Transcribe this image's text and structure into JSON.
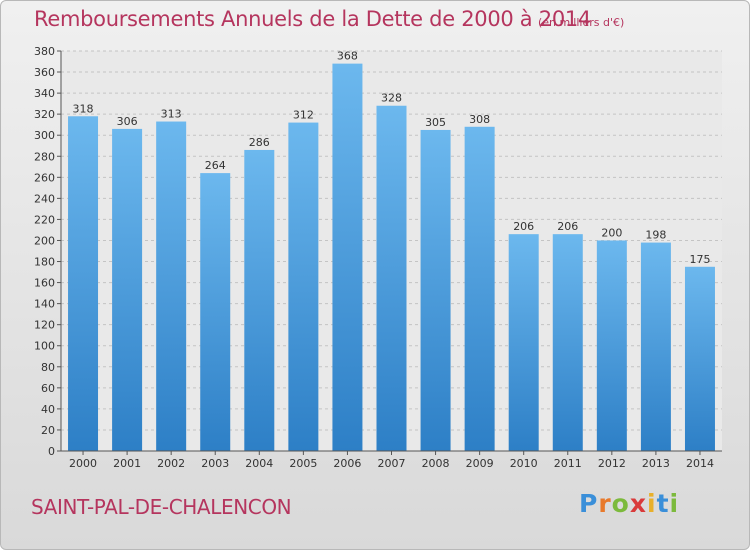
{
  "title": "Remboursements Annuels de la Dette de 2000 à 2014",
  "subtitle": "(en milliers d'€)",
  "commune": "SAINT-PAL-DE-CHALENCON",
  "logo": {
    "letters": [
      "P",
      "r",
      "o",
      "x",
      "i",
      "t",
      "i"
    ],
    "colors": [
      "#3a8fd9",
      "#e8792b",
      "#7cba3c",
      "#d93a3a",
      "#e8b02b",
      "#3a8fd9",
      "#7cba3c"
    ]
  },
  "colors": {
    "bar_top": "#6cb8ee",
    "bar_bottom": "#2d7fc6",
    "text_accent": "#b5355e"
  },
  "chart_data": {
    "type": "bar",
    "categories": [
      "2000",
      "2001",
      "2002",
      "2003",
      "2004",
      "2005",
      "2006",
      "2007",
      "2008",
      "2009",
      "2010",
      "2011",
      "2012",
      "2013",
      "2014"
    ],
    "values": [
      318,
      306,
      313,
      264,
      286,
      312,
      368,
      328,
      305,
      308,
      206,
      206,
      200,
      198,
      175
    ],
    "ylim": [
      0,
      380
    ],
    "yticks": [
      0,
      20,
      40,
      60,
      80,
      100,
      120,
      140,
      160,
      180,
      200,
      220,
      240,
      260,
      280,
      300,
      320,
      340,
      360,
      380
    ],
    "grid": true
  }
}
